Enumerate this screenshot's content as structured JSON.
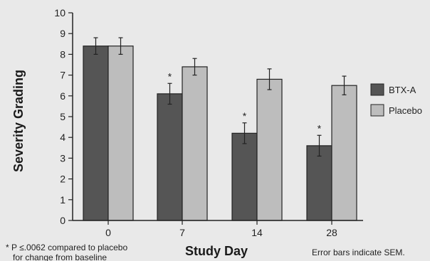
{
  "chart_data": {
    "type": "bar",
    "categories": [
      "0",
      "7",
      "14",
      "28"
    ],
    "series": [
      {
        "name": "BTX-A",
        "values": [
          8.4,
          6.1,
          4.2,
          3.6
        ],
        "errors": [
          0.4,
          0.5,
          0.5,
          0.5
        ],
        "color": "#555555"
      },
      {
        "name": "Placebo",
        "values": [
          8.4,
          7.4,
          6.8,
          6.5
        ],
        "errors": [
          0.4,
          0.4,
          0.5,
          0.45
        ],
        "color": "#bdbdbd"
      }
    ],
    "significance_markers": [
      {
        "category": "7",
        "series": "BTX-A",
        "symbol": "*"
      },
      {
        "category": "14",
        "series": "BTX-A",
        "symbol": "*"
      },
      {
        "category": "28",
        "series": "BTX-A",
        "symbol": "*"
      }
    ],
    "xlabel": "Study Day",
    "ylabel": "Severity Grading",
    "ylim": [
      0,
      10
    ],
    "yticks": [
      0,
      1,
      2,
      3,
      4,
      5,
      6,
      7,
      8,
      9,
      10
    ],
    "legend_position": "right",
    "grid": false
  },
  "footnote_left_1": "* P ≤.0062 compared to placebo",
  "footnote_left_2": "for change from baseline",
  "footnote_right": "Error bars indicate SEM."
}
